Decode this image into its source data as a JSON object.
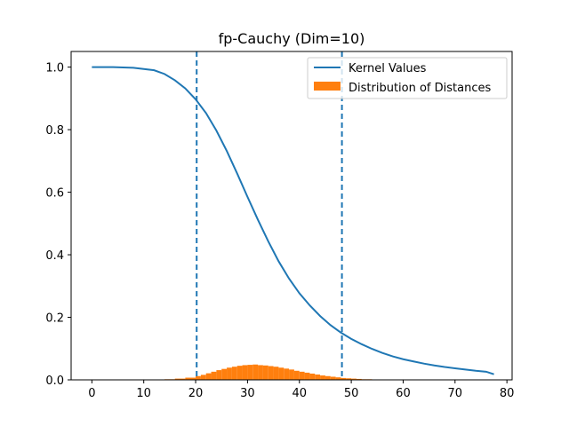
{
  "chart_data": {
    "type": "line",
    "title": "fp-Cauchy (Dim=10)",
    "xlabel": "",
    "ylabel": "",
    "xlim": [
      -4,
      81
    ],
    "ylim": [
      0,
      1.05
    ],
    "x_ticks": [
      0,
      10,
      20,
      30,
      40,
      50,
      60,
      70,
      80
    ],
    "y_ticks": [
      0.0,
      0.2,
      0.4,
      0.6,
      0.8,
      1.0
    ],
    "x_tick_labels": [
      "0",
      "10",
      "20",
      "30",
      "40",
      "50",
      "60",
      "70",
      "80"
    ],
    "y_tick_labels": [
      "0.0",
      "0.2",
      "0.4",
      "0.6",
      "0.8",
      "1.0"
    ],
    "legend_position": "top-right",
    "colors": {
      "kernel": "#1f77b4",
      "histogram": "#ff7f0e",
      "vlines": "#1f77b4"
    },
    "series": [
      {
        "name": "Kernel Values",
        "kind": "line",
        "x": [
          0,
          4,
          8,
          12,
          14,
          16,
          18,
          20,
          22,
          24,
          26,
          28,
          30,
          32,
          34,
          36,
          38,
          40,
          42,
          44,
          46,
          48,
          50,
          52,
          54,
          56,
          58,
          60,
          62,
          64,
          66,
          68,
          70,
          72,
          74,
          76,
          77.5
        ],
        "y": [
          1.0,
          1.0,
          0.998,
          0.99,
          0.978,
          0.958,
          0.932,
          0.897,
          0.853,
          0.797,
          0.732,
          0.66,
          0.585,
          0.512,
          0.443,
          0.379,
          0.324,
          0.277,
          0.238,
          0.204,
          0.175,
          0.151,
          0.131,
          0.114,
          0.099,
          0.086,
          0.075,
          0.066,
          0.059,
          0.052,
          0.046,
          0.041,
          0.037,
          0.033,
          0.029,
          0.026,
          0.018
        ]
      },
      {
        "name": "Distribution of Distances",
        "kind": "histogram",
        "x": [
          12,
          14,
          16,
          18,
          20,
          21,
          22,
          23,
          24,
          25,
          26,
          27,
          28,
          29,
          30,
          31,
          32,
          33,
          34,
          35,
          36,
          37,
          38,
          39,
          40,
          41,
          42,
          43,
          44,
          45,
          46,
          47,
          48,
          49,
          50,
          51,
          52,
          53,
          54,
          55,
          56,
          58
        ],
        "y": [
          0.001,
          0.002,
          0.004,
          0.007,
          0.012,
          0.016,
          0.021,
          0.026,
          0.031,
          0.035,
          0.039,
          0.042,
          0.045,
          0.047,
          0.048,
          0.049,
          0.047,
          0.046,
          0.044,
          0.042,
          0.039,
          0.036,
          0.033,
          0.029,
          0.026,
          0.023,
          0.02,
          0.017,
          0.014,
          0.012,
          0.01,
          0.008,
          0.006,
          0.005,
          0.004,
          0.003,
          0.002,
          0.002,
          0.001,
          0.001,
          0.001,
          0.0005
        ]
      }
    ],
    "vertical_lines": [
      20.2,
      48.2
    ]
  }
}
